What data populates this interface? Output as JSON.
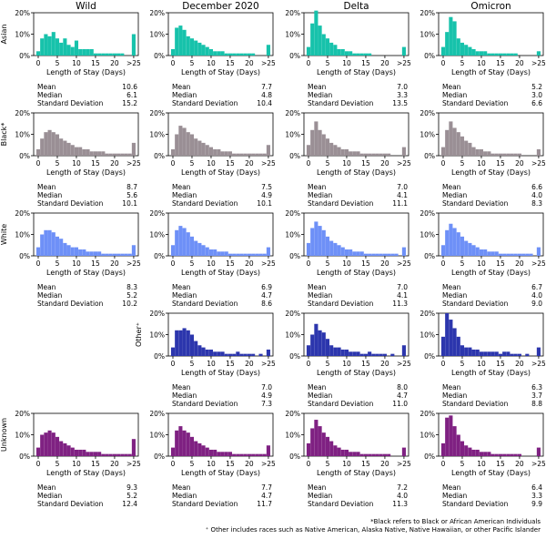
{
  "title": "",
  "columns": [
    "Wild",
    "December 2020",
    "Delta",
    "Omicron"
  ],
  "rows": [
    "Asian",
    "Black*",
    "White",
    "Other⁺",
    "Unknown"
  ],
  "axis": {
    "xlabel": "Length of Stay (Days)",
    "xticks": [
      "0",
      "5",
      "10",
      "15",
      "20",
      ">25"
    ],
    "yticks": [
      "0%",
      "10%",
      "20%"
    ]
  },
  "stats_labels": [
    "Mean",
    "Median",
    "Standard Deviation"
  ],
  "colors": {
    "Asian": "#17c2ab",
    "Black*": "#9a8f95",
    "White": "#6e90f7",
    "Other⁺": "#2c36ad",
    "Unknown": "#7f2182"
  },
  "footnotes": [
    "*Black refers to Black or African American Individuals",
    "⁺ Other includes races such as Native American, Alaska Native,  Native Hawaiian, or other Pacific Islander"
  ],
  "chart_data": [
    {
      "type": "bar",
      "row": "Asian",
      "column": "Wild",
      "xlabel": "Length of Stay (Days)",
      "ylim": [
        0,
        20
      ],
      "categories": [
        "0",
        "1",
        "2",
        "3",
        "4",
        "5",
        "6",
        "7",
        "8",
        "9",
        "10",
        "11",
        "12",
        "13",
        "14",
        "15",
        "16",
        "17",
        "18",
        "19",
        "20",
        "21",
        "22",
        "23",
        "24",
        ">25"
      ],
      "values": [
        2,
        8,
        10,
        9,
        11,
        8,
        6,
        8,
        5,
        4,
        7,
        3,
        3,
        3,
        3,
        1,
        1,
        1,
        1,
        1,
        1,
        1,
        1,
        0,
        0,
        10
      ],
      "stats": {
        "Mean": "10.6",
        "Median": "6.1",
        "Standard Deviation": "15.2"
      }
    },
    {
      "type": "bar",
      "row": "Asian",
      "column": "December 2020",
      "xlabel": "Length of Stay (Days)",
      "ylim": [
        0,
        20
      ],
      "categories": [
        "0",
        "1",
        "2",
        "3",
        "4",
        "5",
        "6",
        "7",
        "8",
        "9",
        "10",
        "11",
        "12",
        "13",
        "14",
        "15",
        "16",
        "17",
        "18",
        "19",
        "20",
        "21",
        "22",
        "23",
        "24",
        ">25"
      ],
      "values": [
        3,
        13,
        14,
        12,
        9,
        8,
        7,
        6,
        5,
        4,
        3,
        2,
        2,
        2,
        1,
        1,
        1,
        1,
        1,
        1,
        1,
        1,
        0,
        0,
        0,
        5
      ],
      "stats": {
        "Mean": "7.7",
        "Median": "4.8",
        "Standard Deviation": "10.4"
      }
    },
    {
      "type": "bar",
      "row": "Asian",
      "column": "Delta",
      "xlabel": "Length of Stay (Days)",
      "ylim": [
        0,
        20
      ],
      "categories": [
        "0",
        "1",
        "2",
        "3",
        "4",
        "5",
        "6",
        "7",
        "8",
        "9",
        "10",
        "11",
        "12",
        "13",
        "14",
        "15",
        "16",
        "17",
        "18",
        "19",
        "20",
        "21",
        "22",
        "23",
        "24",
        ">25"
      ],
      "values": [
        4,
        15,
        21,
        14,
        10,
        8,
        6,
        5,
        3,
        3,
        2,
        2,
        1,
        1,
        1,
        1,
        1,
        0,
        0,
        0,
        0,
        0,
        0,
        0,
        0,
        4
      ],
      "stats": {
        "Mean": "7.0",
        "Median": "3.3",
        "Standard Deviation": "13.5"
      }
    },
    {
      "type": "bar",
      "row": "Asian",
      "column": "Omicron",
      "xlabel": "Length of Stay (Days)",
      "ylim": [
        0,
        20
      ],
      "categories": [
        "0",
        "1",
        "2",
        "3",
        "4",
        "5",
        "6",
        "7",
        "8",
        "9",
        "10",
        "11",
        "12",
        "13",
        "14",
        "15",
        "16",
        "17",
        "18",
        "19",
        "20",
        "21",
        "22",
        "23",
        "24",
        ">25"
      ],
      "values": [
        4,
        11,
        18,
        16,
        8,
        6,
        5,
        4,
        3,
        2,
        2,
        2,
        1,
        1,
        1,
        1,
        1,
        1,
        1,
        1,
        0,
        0,
        0,
        0,
        0,
        2
      ],
      "stats": {
        "Mean": "5.2",
        "Median": "3.0",
        "Standard Deviation": "6.6"
      }
    },
    {
      "type": "bar",
      "row": "Black*",
      "column": "Wild",
      "xlabel": "Length of Stay (Days)",
      "ylim": [
        0,
        20
      ],
      "categories": [
        "0",
        "1",
        "2",
        "3",
        "4",
        "5",
        "6",
        "7",
        "8",
        "9",
        "10",
        "11",
        "12",
        "13",
        "14",
        "15",
        "16",
        "17",
        "18",
        "19",
        "20",
        "21",
        "22",
        "23",
        "24",
        ">25"
      ],
      "values": [
        3,
        8,
        11,
        12,
        11,
        10,
        8,
        7,
        6,
        5,
        4,
        4,
        3,
        3,
        2,
        2,
        2,
        2,
        1,
        1,
        1,
        1,
        1,
        1,
        1,
        6
      ],
      "stats": {
        "Mean": "8.7",
        "Median": "5.6",
        "Standard Deviation": "10.1"
      }
    },
    {
      "type": "bar",
      "row": "Black*",
      "column": "December 2020",
      "xlabel": "Length of Stay (Days)",
      "ylim": [
        0,
        20
      ],
      "categories": [
        "0",
        "1",
        "2",
        "3",
        "4",
        "5",
        "6",
        "7",
        "8",
        "9",
        "10",
        "11",
        "12",
        "13",
        "14",
        "15",
        "16",
        "17",
        "18",
        "19",
        "20",
        "21",
        "22",
        "23",
        "24",
        ">25"
      ],
      "values": [
        3,
        10,
        14,
        13,
        11,
        10,
        8,
        7,
        6,
        5,
        4,
        3,
        3,
        2,
        2,
        2,
        1,
        1,
        1,
        1,
        1,
        1,
        1,
        1,
        1,
        5
      ],
      "stats": {
        "Mean": "7.5",
        "Median": "4.9",
        "Standard Deviation": "10.1"
      }
    },
    {
      "type": "bar",
      "row": "Black*",
      "column": "Delta",
      "xlabel": "Length of Stay (Days)",
      "ylim": [
        0,
        20
      ],
      "categories": [
        "0",
        "1",
        "2",
        "3",
        "4",
        "5",
        "6",
        "7",
        "8",
        "9",
        "10",
        "11",
        "12",
        "13",
        "14",
        "15",
        "16",
        "17",
        "18",
        "19",
        "20",
        "21",
        "22",
        "23",
        "24",
        ">25"
      ],
      "values": [
        5,
        12,
        16,
        12,
        10,
        8,
        6,
        5,
        4,
        3,
        3,
        2,
        2,
        2,
        1,
        1,
        1,
        1,
        1,
        1,
        1,
        1,
        0,
        0,
        0,
        4
      ],
      "stats": {
        "Mean": "7.0",
        "Median": "4.1",
        "Standard Deviation": "11.1"
      }
    },
    {
      "type": "bar",
      "row": "Black*",
      "column": "Omicron",
      "xlabel": "Length of Stay (Days)",
      "ylim": [
        0,
        20
      ],
      "categories": [
        "0",
        "1",
        "2",
        "3",
        "4",
        "5",
        "6",
        "7",
        "8",
        "9",
        "10",
        "11",
        "12",
        "13",
        "14",
        "15",
        "16",
        "17",
        "18",
        "19",
        "20",
        "21",
        "22",
        "23",
        "24",
        ">25"
      ],
      "values": [
        4,
        12,
        16,
        13,
        11,
        9,
        7,
        6,
        4,
        3,
        3,
        2,
        2,
        1,
        1,
        1,
        1,
        1,
        1,
        1,
        1,
        0,
        0,
        0,
        0,
        3
      ],
      "stats": {
        "Mean": "6.6",
        "Median": "4.0",
        "Standard Deviation": "8.3"
      }
    },
    {
      "type": "bar",
      "row": "White",
      "column": "Wild",
      "xlabel": "Length of Stay (Days)",
      "ylim": [
        0,
        20
      ],
      "categories": [
        "0",
        "1",
        "2",
        "3",
        "4",
        "5",
        "6",
        "7",
        "8",
        "9",
        "10",
        "11",
        "12",
        "13",
        "14",
        "15",
        "16",
        "17",
        "18",
        "19",
        "20",
        "21",
        "22",
        "23",
        "24",
        ">25"
      ],
      "values": [
        4,
        10,
        12,
        12,
        11,
        9,
        8,
        6,
        5,
        4,
        4,
        3,
        3,
        2,
        2,
        2,
        2,
        1,
        1,
        1,
        1,
        1,
        1,
        1,
        1,
        5
      ],
      "stats": {
        "Mean": "8.3",
        "Median": "5.2",
        "Standard Deviation": "10.2"
      }
    },
    {
      "type": "bar",
      "row": "White",
      "column": "December 2020",
      "xlabel": "Length of Stay (Days)",
      "ylim": [
        0,
        20
      ],
      "categories": [
        "0",
        "1",
        "2",
        "3",
        "4",
        "5",
        "6",
        "7",
        "8",
        "9",
        "10",
        "11",
        "12",
        "13",
        "14",
        "15",
        "16",
        "17",
        "18",
        "19",
        "20",
        "21",
        "22",
        "23",
        "24",
        ">25"
      ],
      "values": [
        5,
        12,
        14,
        13,
        11,
        9,
        7,
        6,
        5,
        4,
        3,
        3,
        2,
        2,
        2,
        1,
        1,
        1,
        1,
        1,
        1,
        1,
        1,
        1,
        1,
        4
      ],
      "stats": {
        "Mean": "6.9",
        "Median": "4.7",
        "Standard Deviation": "8.6"
      }
    },
    {
      "type": "bar",
      "row": "White",
      "column": "Delta",
      "xlabel": "Length of Stay (Days)",
      "ylim": [
        0,
        20
      ],
      "categories": [
        "0",
        "1",
        "2",
        "3",
        "4",
        "5",
        "6",
        "7",
        "8",
        "9",
        "10",
        "11",
        "12",
        "13",
        "14",
        "15",
        "16",
        "17",
        "18",
        "19",
        "20",
        "21",
        "22",
        "23",
        "24",
        ">25"
      ],
      "values": [
        6,
        13,
        16,
        14,
        12,
        9,
        7,
        6,
        5,
        4,
        3,
        3,
        2,
        2,
        2,
        1,
        1,
        1,
        1,
        1,
        1,
        1,
        1,
        1,
        0,
        4
      ],
      "stats": {
        "Mean": "7.0",
        "Median": "4.1",
        "Standard Deviation": "11.3"
      }
    },
    {
      "type": "bar",
      "row": "White",
      "column": "Omicron",
      "xlabel": "Length of Stay (Days)",
      "ylim": [
        0,
        20
      ],
      "categories": [
        "0",
        "1",
        "2",
        "3",
        "4",
        "5",
        "6",
        "7",
        "8",
        "9",
        "10",
        "11",
        "12",
        "13",
        "14",
        "15",
        "16",
        "17",
        "18",
        "19",
        "20",
        "21",
        "22",
        "23",
        "24",
        ">25"
      ],
      "values": [
        5,
        12,
        15,
        13,
        11,
        9,
        7,
        6,
        5,
        4,
        3,
        3,
        2,
        2,
        2,
        1,
        1,
        1,
        1,
        1,
        1,
        1,
        1,
        1,
        0,
        4
      ],
      "stats": {
        "Mean": "6.7",
        "Median": "4.0",
        "Standard Deviation": "9.0"
      }
    },
    {
      "type": "bar",
      "row": "Other⁺",
      "column": "December 2020",
      "xlabel": "Length of Stay (Days)",
      "ylim": [
        0,
        20
      ],
      "categories": [
        "0",
        "1",
        "2",
        "3",
        "4",
        "5",
        "6",
        "7",
        "8",
        "9",
        "10",
        "11",
        "12",
        "13",
        "14",
        "15",
        "16",
        "17",
        "18",
        "19",
        "20",
        "21",
        "22",
        "23",
        "24",
        ">25"
      ],
      "values": [
        4,
        12,
        12,
        13,
        12,
        10,
        7,
        5,
        4,
        3,
        3,
        2,
        2,
        2,
        1,
        1,
        1,
        2,
        1,
        1,
        1,
        1,
        0,
        1,
        0,
        3
      ],
      "stats": {
        "Mean": "7.0",
        "Median": "4.9",
        "Standard Deviation": "7.3"
      }
    },
    {
      "type": "bar",
      "row": "Other⁺",
      "column": "Delta",
      "xlabel": "Length of Stay (Days)",
      "ylim": [
        0,
        20
      ],
      "categories": [
        "0",
        "1",
        "2",
        "3",
        "4",
        "5",
        "6",
        "7",
        "8",
        "9",
        "10",
        "11",
        "12",
        "13",
        "14",
        "15",
        "16",
        "17",
        "18",
        "19",
        "20",
        "21",
        "22",
        "23",
        "24",
        ">25"
      ],
      "values": [
        5,
        10,
        15,
        12,
        11,
        8,
        5,
        4,
        4,
        3,
        3,
        2,
        2,
        2,
        1,
        1,
        2,
        1,
        1,
        1,
        1,
        0,
        1,
        0,
        0,
        5
      ],
      "stats": {
        "Mean": "8.0",
        "Median": "4.7",
        "Standard Deviation": "11.0"
      }
    },
    {
      "type": "bar",
      "row": "Other⁺",
      "column": "Omicron",
      "xlabel": "Length of Stay (Days)",
      "ylim": [
        0,
        20
      ],
      "categories": [
        "0",
        "1",
        "2",
        "3",
        "4",
        "5",
        "6",
        "7",
        "8",
        "9",
        "10",
        "11",
        "12",
        "13",
        "14",
        "15",
        "16",
        "17",
        "18",
        "19",
        "20",
        "21",
        "22",
        "23",
        "24",
        ">25"
      ],
      "values": [
        9,
        20,
        17,
        13,
        9,
        5,
        4,
        4,
        3,
        3,
        2,
        2,
        2,
        2,
        2,
        1,
        2,
        2,
        1,
        1,
        1,
        0,
        1,
        0,
        0,
        4
      ],
      "stats": {
        "Mean": "6.3",
        "Median": "3.7",
        "Standard Deviation": "8.8"
      }
    },
    {
      "type": "bar",
      "row": "Unknown",
      "column": "Wild",
      "xlabel": "Length of Stay (Days)",
      "ylim": [
        0,
        20
      ],
      "categories": [
        "0",
        "1",
        "2",
        "3",
        "4",
        "5",
        "6",
        "7",
        "8",
        "9",
        "10",
        "11",
        "12",
        "13",
        "14",
        "15",
        "16",
        "17",
        "18",
        "19",
        "20",
        "21",
        "22",
        "23",
        "24",
        ">25"
      ],
      "values": [
        4,
        10,
        11,
        12,
        11,
        9,
        7,
        6,
        5,
        4,
        3,
        3,
        3,
        2,
        2,
        2,
        2,
        1,
        1,
        1,
        1,
        1,
        1,
        1,
        1,
        8
      ],
      "stats": {
        "Mean": "9.3",
        "Median": "5.2",
        "Standard Deviation": "12.4"
      }
    },
    {
      "type": "bar",
      "row": "Unknown",
      "column": "December 2020",
      "xlabel": "Length of Stay (Days)",
      "ylim": [
        0,
        20
      ],
      "categories": [
        "0",
        "1",
        "2",
        "3",
        "4",
        "5",
        "6",
        "7",
        "8",
        "9",
        "10",
        "11",
        "12",
        "13",
        "14",
        "15",
        "16",
        "17",
        "18",
        "19",
        "20",
        "21",
        "22",
        "23",
        "24",
        ">25"
      ],
      "values": [
        4,
        12,
        14,
        12,
        11,
        9,
        7,
        6,
        5,
        4,
        3,
        3,
        2,
        2,
        2,
        2,
        1,
        1,
        1,
        1,
        1,
        1,
        1,
        1,
        1,
        5
      ],
      "stats": {
        "Mean": "7.7",
        "Median": "4.7",
        "Standard Deviation": "11.7"
      }
    },
    {
      "type": "bar",
      "row": "Unknown",
      "column": "Delta",
      "xlabel": "Length of Stay (Days)",
      "ylim": [
        0,
        20
      ],
      "categories": [
        "0",
        "1",
        "2",
        "3",
        "4",
        "5",
        "6",
        "7",
        "8",
        "9",
        "10",
        "11",
        "12",
        "13",
        "14",
        "15",
        "16",
        "17",
        "18",
        "19",
        "20",
        "21",
        "22",
        "23",
        "24",
        ">25"
      ],
      "values": [
        6,
        13,
        17,
        14,
        11,
        9,
        7,
        5,
        4,
        3,
        3,
        2,
        2,
        2,
        1,
        1,
        1,
        1,
        1,
        1,
        1,
        1,
        0,
        0,
        0,
        4
      ],
      "stats": {
        "Mean": "7.2",
        "Median": "4.0",
        "Standard Deviation": "11.3"
      }
    },
    {
      "type": "bar",
      "row": "Unknown",
      "column": "Omicron",
      "xlabel": "Length of Stay (Days)",
      "ylim": [
        0,
        20
      ],
      "categories": [
        "0",
        "1",
        "2",
        "3",
        "4",
        "5",
        "6",
        "7",
        "8",
        "9",
        "10",
        "11",
        "12",
        "13",
        "14",
        "15",
        "16",
        "17",
        "18",
        "19",
        "20",
        "21",
        "22",
        "23",
        "24",
        ">25"
      ],
      "values": [
        6,
        18,
        19,
        14,
        10,
        7,
        5,
        4,
        3,
        3,
        2,
        2,
        2,
        1,
        1,
        1,
        1,
        1,
        1,
        1,
        1,
        0,
        0,
        0,
        0,
        4
      ],
      "stats": {
        "Mean": "6.4",
        "Median": "3.3",
        "Standard Deviation": "9.9"
      }
    }
  ]
}
